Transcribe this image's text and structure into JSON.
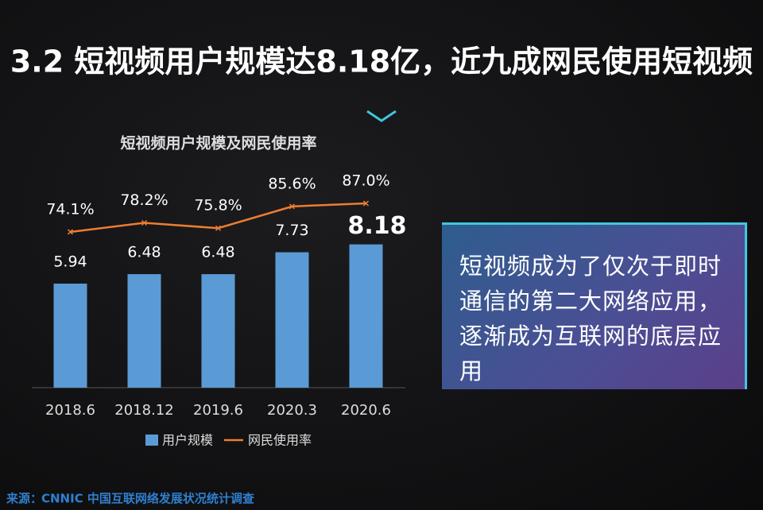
{
  "slide_title": "3.2 短视频用户规模达8.18亿，近九成网民使用短视频",
  "chart_data": {
    "type": "bar",
    "title": "短视频用户规模及网民使用率",
    "categories": [
      "2018.6",
      "2018.12",
      "2019.6",
      "2020.3",
      "2020.6"
    ],
    "series": [
      {
        "name": "用户规模",
        "type": "bar",
        "color": "#5b9bd5",
        "values": [
          5.94,
          6.48,
          6.48,
          7.73,
          8.18
        ]
      },
      {
        "name": "网民使用率",
        "type": "line",
        "axis": "y2",
        "color": "#ed7d31",
        "values": [
          74.1,
          78.2,
          75.8,
          85.6,
          87.0
        ],
        "value_labels": [
          "74.1%",
          "78.2%",
          "75.8%",
          "85.6%",
          "87.0%"
        ]
      }
    ],
    "legend": "bottom"
  },
  "callout": "短视频成为了仅次于即时通信的第二大网络应用，逐渐成为互联网的底层应用",
  "source": {
    "label": "来源：",
    "text": "CNNIC 中国互联网络发展状况统计调查"
  }
}
